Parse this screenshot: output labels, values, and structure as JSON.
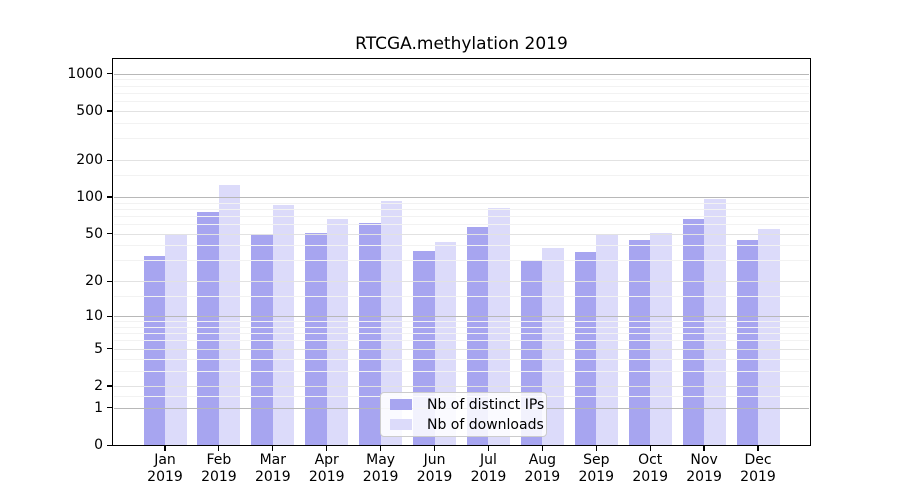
{
  "title": "RTCGA.methylation 2019",
  "chart_data": {
    "type": "bar",
    "title": "RTCGA.methylation 2019",
    "categories": [
      "Jan",
      "Feb",
      "Mar",
      "Apr",
      "May",
      "Jun",
      "Jul",
      "Aug",
      "Sep",
      "Oct",
      "Nov",
      "Dec"
    ],
    "year_label": "2019",
    "series": [
      {
        "key": "distinct-ips",
        "name": "Nb of distinct IPs",
        "color": "#a7a5f0",
        "values": [
          33,
          76,
          49,
          51,
          61,
          36,
          57,
          30,
          35,
          44,
          66,
          44
        ]
      },
      {
        "key": "downloads",
        "name": "Nb of downloads",
        "color": "#dcdbfa",
        "values": [
          50,
          125,
          86,
          66,
          93,
          43,
          81,
          38,
          50,
          51,
          97,
          55
        ]
      }
    ],
    "xlabel": "",
    "ylabel": "",
    "scale": "log1p",
    "ylim": [
      0,
      1316
    ],
    "y_ticks": [
      0,
      1,
      2,
      5,
      10,
      20,
      50,
      100,
      200,
      500,
      1000
    ],
    "grid": {
      "on": true,
      "major_values": [
        1,
        10,
        100,
        1000
      ],
      "mid_values": [
        2,
        5,
        20,
        50,
        200,
        500
      ],
      "minor_values": [
        1.5,
        3,
        4,
        6,
        7,
        8,
        9,
        15,
        30,
        40,
        60,
        70,
        80,
        90,
        150,
        300,
        400,
        600,
        700,
        800,
        900
      ],
      "major_color": "#b8b8b8",
      "mid_color": "#e2e2e2",
      "minor_color": "#f2f2f2"
    },
    "legend": {
      "position": "lower center"
    }
  }
}
